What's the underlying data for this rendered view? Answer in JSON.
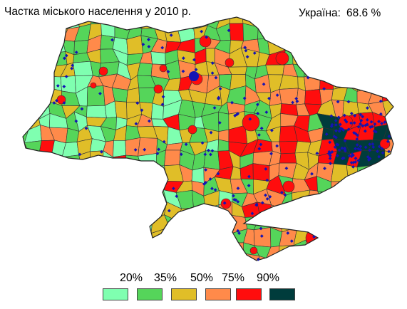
{
  "title": "Частка міського населення  у 2010 р.",
  "national": {
    "label": "Україна:",
    "value": "68.6 %"
  },
  "legend": {
    "thresholds": [
      "20%",
      "35%",
      "50%",
      "75%",
      "90%"
    ],
    "classes": [
      {
        "color": "#7fffb0"
      },
      {
        "color": "#55d55a"
      },
      {
        "color": "#e0be28"
      },
      {
        "color": "#ff8a4a"
      },
      {
        "color": "#ff0d0d"
      },
      {
        "color": "#003c3c"
      }
    ]
  },
  "colors": {
    "city_marker": "#1414b4",
    "district_border": "#333333",
    "sea_of_azov_city_dots": "#1414b4"
  }
}
